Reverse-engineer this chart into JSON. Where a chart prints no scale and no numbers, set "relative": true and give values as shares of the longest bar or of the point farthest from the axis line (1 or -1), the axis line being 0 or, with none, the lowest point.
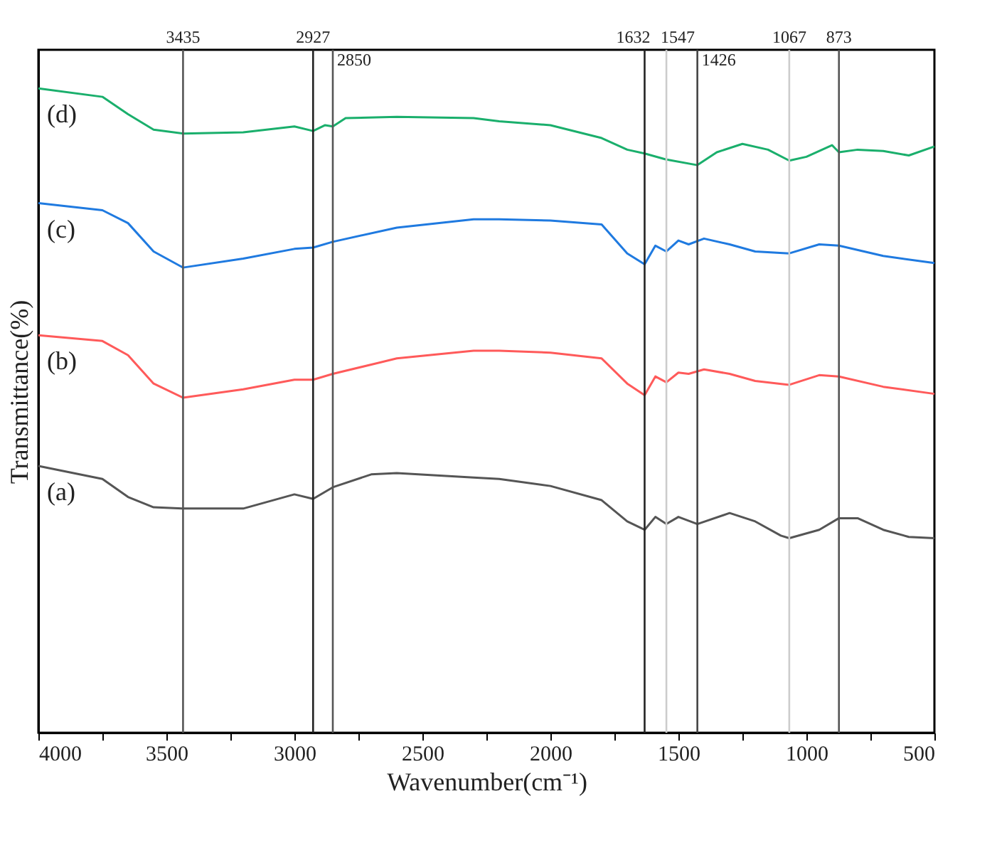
{
  "chart_data": {
    "type": "line",
    "relative": true,
    "xlabel": "Wavenumber(cm⁻¹)",
    "ylabel": "Transmittance(%)",
    "xlim": [
      4000,
      500
    ],
    "xticks": [
      4000,
      {
        "value": 3750,
        "label": null
      },
      3500,
      {
        "value": 3250,
        "label": null
      },
      3000,
      {
        "value": 2750,
        "label": null
      },
      2500,
      {
        "value": 2250,
        "label": null
      },
      2000,
      {
        "value": 1750,
        "label": null
      },
      1500,
      {
        "value": 1250,
        "label": null
      },
      1000,
      {
        "value": 750,
        "label": null
      },
      500
    ],
    "grid": false,
    "tick_labels": "x",
    "line_style": "solid",
    "marker": "none",
    "series": [
      {
        "name": "(a)",
        "color": "#555555",
        "x": [
          4000,
          3750,
          3650,
          3550,
          3435,
          3200,
          3000,
          2927,
          2850,
          2700,
          2600,
          2300,
          2200,
          2000,
          1800,
          1700,
          1632,
          1590,
          1547,
          1500,
          1426,
          1300,
          1200,
          1100,
          1067,
          950,
          873,
          800,
          700,
          600,
          500
        ],
        "values": [
          0.414,
          0.394,
          0.366,
          0.35,
          0.348,
          0.348,
          0.37,
          0.363,
          0.381,
          0.401,
          0.403,
          0.396,
          0.394,
          0.383,
          0.361,
          0.328,
          0.315,
          0.335,
          0.324,
          0.335,
          0.324,
          0.341,
          0.328,
          0.306,
          0.302,
          0.315,
          0.333,
          0.333,
          0.315,
          0.304,
          0.302
        ]
      },
      {
        "name": "(b)",
        "color": "#ff5a5a",
        "x": [
          4000,
          3750,
          3650,
          3550,
          3435,
          3200,
          3000,
          2927,
          2850,
          2600,
          2300,
          2200,
          2000,
          1800,
          1700,
          1632,
          1590,
          1547,
          1500,
          1460,
          1400,
          1300,
          1200,
          1067,
          950,
          873,
          700,
          500
        ],
        "values": [
          0.617,
          0.608,
          0.586,
          0.542,
          0.52,
          0.533,
          0.548,
          0.548,
          0.557,
          0.581,
          0.593,
          0.593,
          0.59,
          0.581,
          0.542,
          0.524,
          0.553,
          0.544,
          0.559,
          0.557,
          0.564,
          0.557,
          0.546,
          0.54,
          0.555,
          0.553,
          0.537,
          0.526
        ]
      },
      {
        "name": "(c)",
        "color": "#1f7ae0",
        "x": [
          4000,
          3750,
          3650,
          3550,
          3435,
          3200,
          3000,
          2927,
          2850,
          2600,
          2300,
          2200,
          2000,
          1800,
          1700,
          1632,
          1590,
          1547,
          1500,
          1460,
          1400,
          1300,
          1200,
          1067,
          950,
          873,
          700,
          500
        ],
        "values": [
          0.822,
          0.811,
          0.791,
          0.747,
          0.722,
          0.736,
          0.751,
          0.753,
          0.762,
          0.784,
          0.797,
          0.797,
          0.795,
          0.789,
          0.744,
          0.727,
          0.756,
          0.747,
          0.764,
          0.758,
          0.767,
          0.758,
          0.747,
          0.744,
          0.758,
          0.756,
          0.74,
          0.729
        ]
      },
      {
        "name": "(d)",
        "color": "#1aaf6c",
        "x": [
          4000,
          3750,
          3650,
          3550,
          3435,
          3200,
          3000,
          2927,
          2880,
          2850,
          2800,
          2600,
          2300,
          2200,
          2000,
          1800,
          1700,
          1632,
          1550,
          1426,
          1350,
          1250,
          1150,
          1067,
          1000,
          900,
          873,
          800,
          700,
          600,
          500
        ],
        "values": [
          1.0,
          0.987,
          0.96,
          0.936,
          0.93,
          0.932,
          0.941,
          0.934,
          0.943,
          0.941,
          0.954,
          0.956,
          0.954,
          0.949,
          0.943,
          0.923,
          0.905,
          0.899,
          0.89,
          0.881,
          0.901,
          0.914,
          0.905,
          0.888,
          0.894,
          0.912,
          0.901,
          0.905,
          0.903,
          0.896,
          0.91
        ]
      }
    ],
    "ref_lines": [
      {
        "axis": "x",
        "value": 3435,
        "label": "3435",
        "color": "#555555"
      },
      {
        "axis": "x",
        "value": 2927,
        "label": "2927",
        "color": "#222222"
      },
      {
        "axis": "x",
        "value": 2850,
        "label": "2850",
        "color": "#555555"
      },
      {
        "axis": "x",
        "value": 1632,
        "label": "1632",
        "color": "#222222"
      },
      {
        "axis": "x",
        "value": 1547,
        "label": "1547",
        "color": "#cccccc"
      },
      {
        "axis": "x",
        "value": 1426,
        "label": "1426",
        "color": "#444444"
      },
      {
        "axis": "x",
        "value": 1067,
        "label": "1067",
        "color": "#cccccc"
      },
      {
        "axis": "x",
        "value": 873,
        "label": "873",
        "color": "#555555"
      }
    ]
  }
}
